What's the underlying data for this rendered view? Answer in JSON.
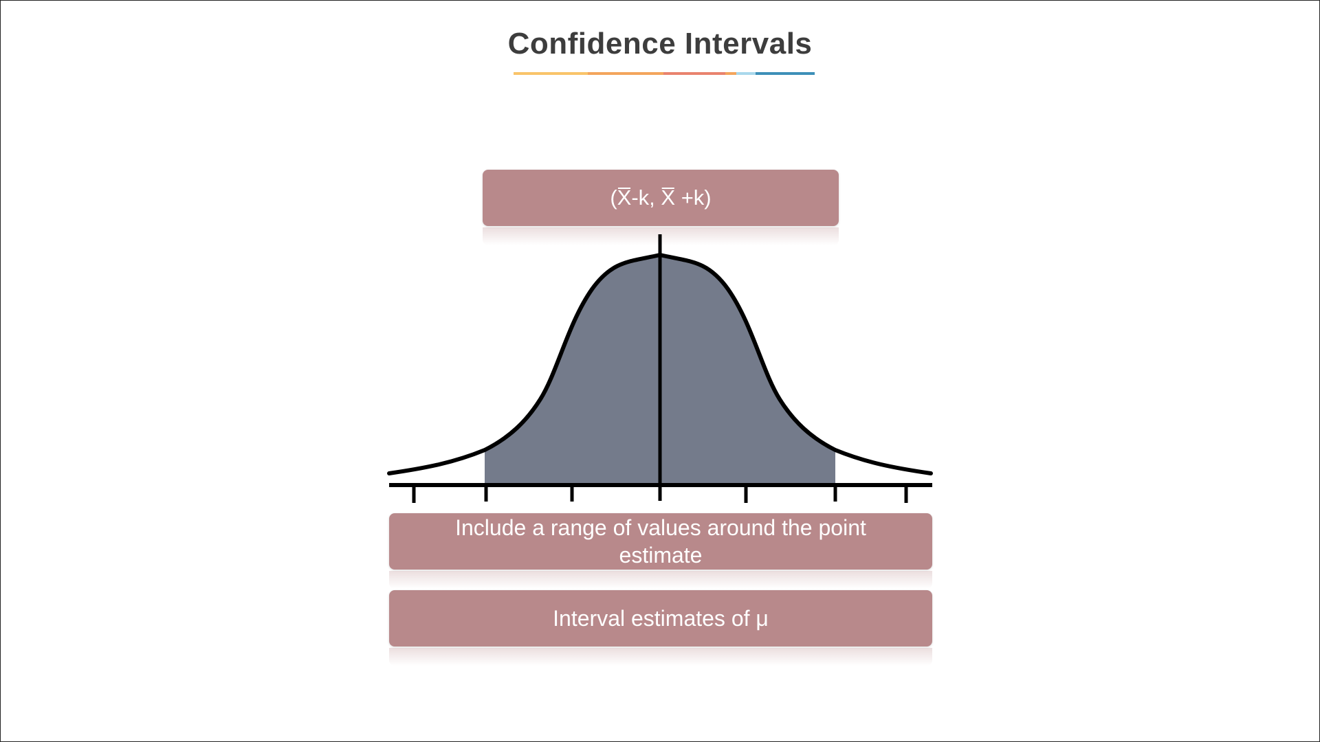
{
  "title": "Confidence Intervals",
  "underline_colors": [
    "#f9c46a",
    "#f3a55c",
    "#e9836e",
    "#f3a55c",
    "#a9d8ec",
    "#3d8fb8"
  ],
  "diagram": {
    "interval_label": "(X̅-k, X̅ +k)",
    "fill_color": "#747b8b",
    "box_color": "#b8898b"
  },
  "boxes": {
    "description": "Include a range of values around the point estimate",
    "name": "Interval estimates of μ"
  }
}
